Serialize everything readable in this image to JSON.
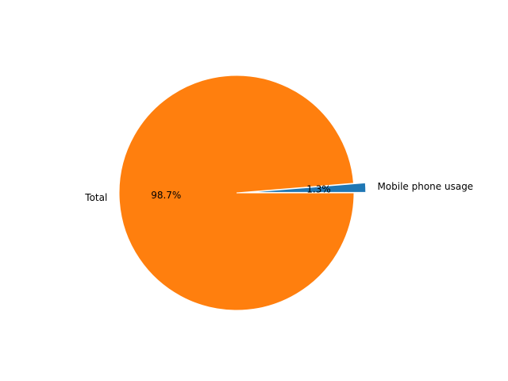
{
  "chart_data": {
    "type": "pie",
    "title": "",
    "slices": [
      {
        "label": "Mobile phone usage",
        "value": 1.3,
        "percent_label": "1.3%",
        "color": "#1f77b4",
        "exploded": true
      },
      {
        "label": "Total",
        "value": 98.7,
        "percent_label": "98.7%",
        "color": "#ff7f0e",
        "exploded": false
      }
    ],
    "legend": "none",
    "start_angle_deg": 0,
    "direction": "counterclockwise"
  }
}
